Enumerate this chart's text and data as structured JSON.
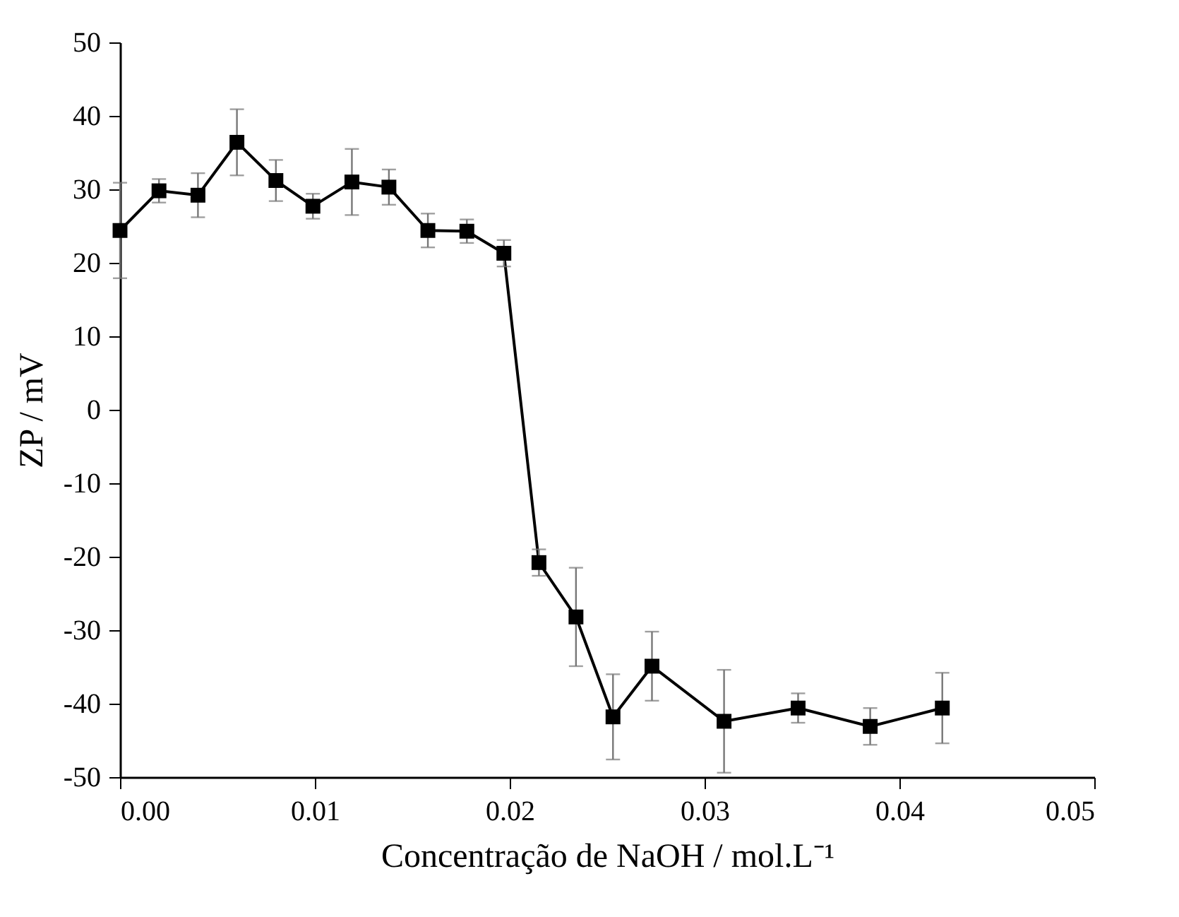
{
  "chart_data": {
    "type": "line",
    "xlabel": "Concentração de NaOH / mol.L⁻¹",
    "ylabel": "ZP / mV",
    "x": [
      0.0,
      0.002,
      0.004,
      0.006,
      0.008,
      0.0099,
      0.0119,
      0.0138,
      0.0158,
      0.0178,
      0.0197,
      0.0215,
      0.0234,
      0.0253,
      0.0273,
      0.031,
      0.0348,
      0.0385,
      0.0422
    ],
    "series": [
      {
        "color": "#000000",
        "marker": "square",
        "line_style": "solid",
        "values": [
          24.4,
          29.8,
          29.2,
          36.4,
          31.2,
          27.7,
          31.0,
          30.3,
          24.4,
          24.3,
          21.3,
          -20.8,
          -28.2,
          -41.8,
          -34.9,
          -42.4,
          -40.6,
          -43.1,
          -40.6
        ],
        "errors": [
          6.5,
          1.6,
          3.0,
          4.5,
          2.8,
          1.7,
          4.5,
          2.4,
          2.3,
          1.6,
          1.8,
          1.8,
          6.7,
          5.8,
          4.7,
          7.0,
          2.0,
          2.5,
          4.8
        ]
      }
    ],
    "xlim": [
      0,
      0.05
    ],
    "xticks": [
      {
        "value": 0,
        "label": "0.00"
      },
      {
        "value": 0.01,
        "label": "0.01"
      },
      {
        "value": 0.02,
        "label": "0.02"
      },
      {
        "value": 0.03,
        "label": "0.03"
      },
      {
        "value": 0.04,
        "label": "0.04"
      },
      {
        "value": 0.05,
        "label": "0.05"
      }
    ],
    "ylim": [
      -50,
      50
    ],
    "yticks": [
      -50,
      -40,
      -30,
      -20,
      -10,
      0,
      10,
      20,
      30,
      40,
      50
    ],
    "grid": false
  }
}
